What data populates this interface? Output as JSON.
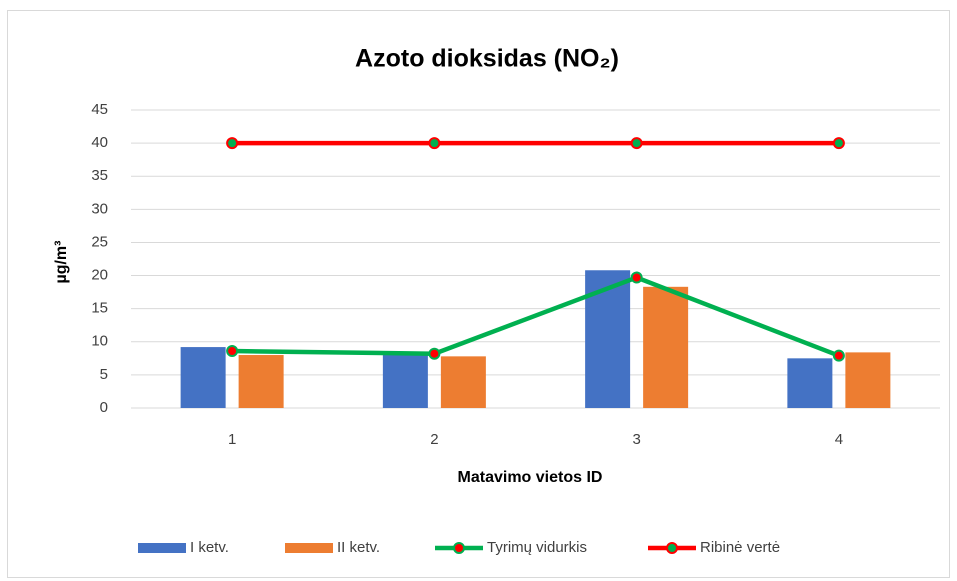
{
  "chart_data": {
    "type": "bar",
    "title": "Azoto dioksidas (NO₂)",
    "x_label": "Matavimo vietos ID",
    "y_label": "µg/m³",
    "categories": [
      "1",
      "2",
      "3",
      "4"
    ],
    "series": [
      {
        "name": "I ketv.",
        "type": "bar",
        "color": "#4472c4",
        "values": [
          9.2,
          8.0,
          20.8,
          7.5
        ]
      },
      {
        "name": "II ketv.",
        "type": "bar",
        "color": "#ed7d31",
        "values": [
          8.0,
          7.8,
          18.3,
          8.4
        ]
      },
      {
        "name": "Tyrimų vidurkis",
        "type": "line",
        "color": "#00b050",
        "marker_color": "#ff0000",
        "values": [
          8.6,
          8.2,
          19.7,
          7.9
        ]
      },
      {
        "name": "Ribinė vertė",
        "type": "line",
        "color": "#ff0000",
        "marker_color": "#00b050",
        "values": [
          40,
          40,
          40,
          40
        ]
      }
    ],
    "ylim": [
      0,
      45
    ],
    "yticks": [
      0,
      5,
      10,
      15,
      20,
      25,
      30,
      35,
      40,
      45
    ],
    "grid": true,
    "legend": "bottom"
  }
}
